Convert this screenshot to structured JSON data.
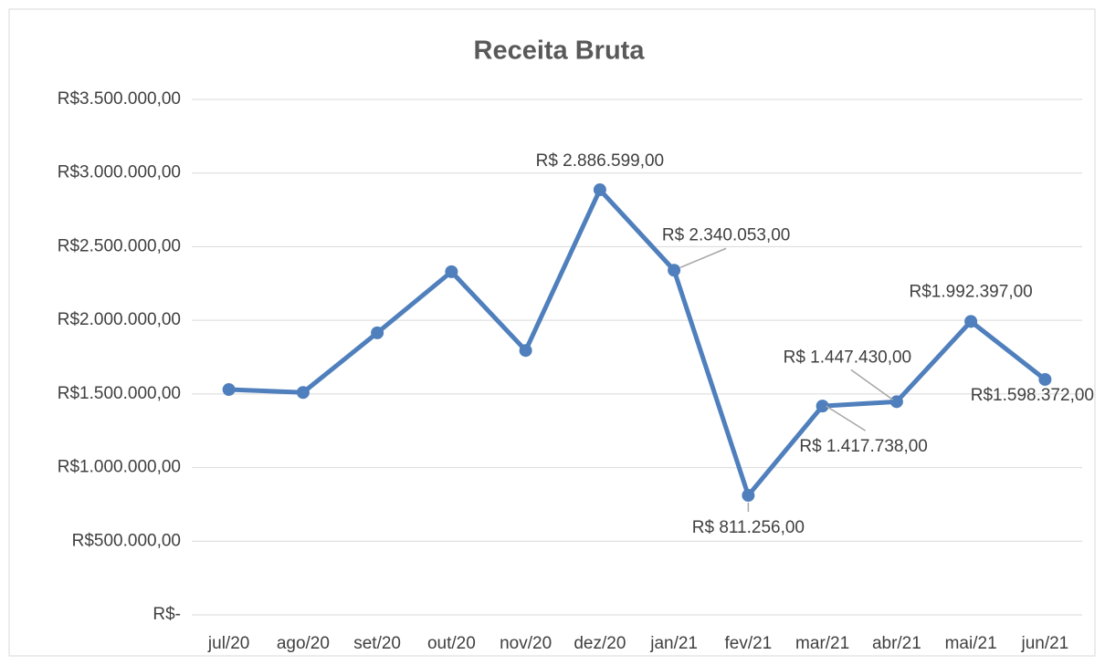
{
  "chart_data": {
    "type": "line",
    "title": "Receita Bruta",
    "categories": [
      "jul/20",
      "ago/20",
      "set/20",
      "out/20",
      "nov/20",
      "dez/20",
      "jan/21",
      "fev/21",
      "mar/21",
      "abr/21",
      "mai/21",
      "jun/21"
    ],
    "series": [
      {
        "name": "Receita Bruta",
        "color": "#4f7fbc",
        "values": [
          1530000,
          1510000,
          1915000,
          2330000,
          1795000,
          2886599,
          2340053,
          811256,
          1417738,
          1447430,
          1992397,
          1598372
        ],
        "value_labels": [
          null,
          null,
          null,
          null,
          null,
          "R$ 2.886.599,00",
          "R$ 2.340.053,00",
          "R$ 811.256,00",
          "R$ 1.417.738,00",
          "R$ 1.447.430,00",
          "R$1.992.397,00",
          "R$1.598.372,00"
        ]
      }
    ],
    "ylim": [
      0,
      3500000
    ],
    "yticks": [
      {
        "value": 0,
        "label": "R$-"
      },
      {
        "value": 500000,
        "label": "R$500.000,00"
      },
      {
        "value": 1000000,
        "label": "R$1.000.000,00"
      },
      {
        "value": 1500000,
        "label": "R$1.500.000,00"
      },
      {
        "value": 2000000,
        "label": "R$2.000.000,00"
      },
      {
        "value": 2500000,
        "label": "R$2.500.000,00"
      },
      {
        "value": 3000000,
        "label": "R$3.000.000,00"
      },
      {
        "value": 3500000,
        "label": "R$3.500.000,00"
      }
    ],
    "grid": true
  }
}
